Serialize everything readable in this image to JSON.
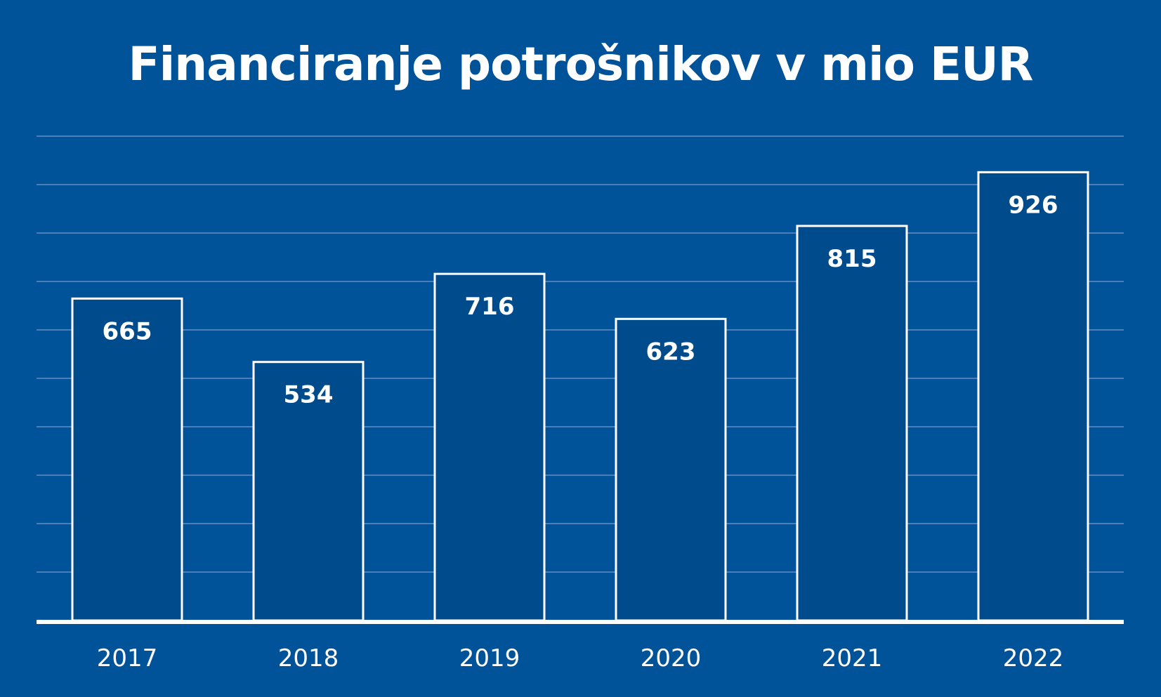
{
  "chart_data": {
    "type": "bar",
    "title": "Financiranje potrošnikov v mio EUR",
    "categories": [
      "2017",
      "2018",
      "2019",
      "2020",
      "2021",
      "2022"
    ],
    "values": [
      665,
      534,
      716,
      623,
      815,
      926
    ],
    "ylim": [
      0,
      1000
    ],
    "grid": true,
    "legend": "none",
    "colors": {
      "background": "#005299",
      "bar_fill": "#004b8c",
      "bar_stroke": "#ffffff",
      "gridline": "#4a7fb8",
      "text": "#ffffff"
    }
  }
}
